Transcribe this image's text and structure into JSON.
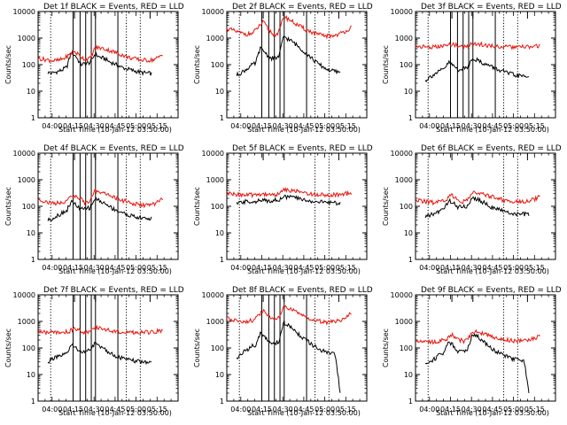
{
  "figure": {
    "background": "#ffffff",
    "colors": {
      "events": "#000000",
      "lld": "#e8140c",
      "axes": "#000000"
    }
  },
  "chart_data": [
    {
      "type": "line",
      "title": "Det 1f BLACK = Events, RED = LLD",
      "xlabel": "Start Time (10-Jan-12 03:50:00)",
      "ylabel": "Counts/sec",
      "yscale": "log",
      "ylim": [
        1,
        10000
      ],
      "x_ticks": [
        "04:00",
        "04:15",
        "04:30",
        "04:45",
        "05:00",
        "05:15"
      ],
      "y_ticks": [
        "1",
        "10",
        "100",
        "1000",
        "10000"
      ],
      "vlines_dotted": [
        "03:59",
        "04:53",
        "05:03"
      ],
      "vlines_solid": [
        "04:15",
        "04:20",
        "04:24",
        "04:28",
        "04:31",
        "04:47"
      ],
      "markers": [
        "04:16",
        "04:31",
        "05:10"
      ],
      "series": [
        {
          "name": "Events",
          "start": "03:57",
          "end": "05:11",
          "values": [
            50,
            48,
            55,
            62,
            80,
            300,
            200,
            100,
            110,
            120,
            250,
            190,
            170,
            130,
            110,
            90,
            75,
            68,
            60,
            55,
            50,
            48,
            46
          ]
        },
        {
          "name": "LLD",
          "start": "03:50",
          "end": "05:19",
          "values": [
            170,
            160,
            150,
            140,
            145,
            170,
            230,
            310,
            220,
            160,
            170,
            440,
            420,
            380,
            330,
            280,
            240,
            200,
            175,
            160,
            150,
            145,
            150,
            175,
            250
          ]
        }
      ]
    },
    {
      "type": "line",
      "title": "Det 2f BLACK = Events, RED = LLD",
      "xlabel": "Start Time (10-Jan-12 03:50:00)",
      "ylabel": "Counts/sec",
      "yscale": "log",
      "ylim": [
        1,
        10000
      ],
      "x_ticks": [
        "04:00",
        "04:15",
        "04:30",
        "04:45",
        "05:00",
        "05:15"
      ],
      "y_ticks": [
        "1",
        "10",
        "100",
        "1000",
        "10000"
      ],
      "vlines_dotted": [
        "03:59",
        "04:53",
        "05:03"
      ],
      "vlines_solid": [
        "04:15",
        "04:20",
        "04:24",
        "04:28",
        "04:31",
        "04:47"
      ],
      "markers": [
        "04:16",
        "04:31",
        "05:10"
      ],
      "series": [
        {
          "name": "Events",
          "start": "03:57",
          "end": "05:11",
          "values": [
            40,
            50,
            65,
            90,
            110,
            400,
            300,
            180,
            170,
            200,
            1200,
            900,
            700,
            500,
            350,
            250,
            170,
            120,
            90,
            70,
            60,
            55,
            50
          ]
        },
        {
          "name": "LLD",
          "start": "03:50",
          "end": "05:19",
          "values": [
            2200,
            2000,
            1700,
            1500,
            1400,
            1500,
            2500,
            4000,
            2200,
            1300,
            1600,
            6500,
            5000,
            3700,
            2800,
            2200,
            1800,
            1500,
            1300,
            1200,
            1200,
            1300,
            1500,
            1900,
            2500
          ]
        }
      ]
    },
    {
      "type": "line",
      "title": "Det 3f BLACK = Events, RED = LLD",
      "xlabel": "Start Time (10-Jan-12 03:50:00)",
      "ylabel": "Counts/sec",
      "yscale": "log",
      "ylim": [
        1,
        10000
      ],
      "x_ticks": [
        "04:00",
        "04:15",
        "04:30",
        "04:45",
        "05:00",
        "05:15"
      ],
      "y_ticks": [
        "1",
        "10",
        "100",
        "1000",
        "10000"
      ],
      "vlines_dotted": [
        "03:59",
        "04:53",
        "05:03"
      ],
      "vlines_solid": [
        "04:15",
        "04:20",
        "04:24",
        "04:28",
        "04:31",
        "04:47"
      ],
      "markers": [
        "04:16",
        "04:31",
        "05:10"
      ],
      "series": [
        {
          "name": "Events",
          "start": "03:57",
          "end": "05:11",
          "values": [
            25,
            35,
            45,
            55,
            70,
            120,
            90,
            65,
            70,
            80,
            180,
            150,
            120,
            100,
            85,
            70,
            60,
            52,
            45,
            40,
            38,
            36,
            35
          ]
        },
        {
          "name": "LLD",
          "start": "03:50",
          "end": "05:19",
          "values": [
            500,
            480,
            470,
            460,
            460,
            480,
            520,
            600,
            520,
            470,
            480,
            640,
            600,
            560,
            520,
            500,
            480,
            470,
            460,
            455,
            455,
            460,
            470,
            480,
            500
          ]
        }
      ]
    },
    {
      "type": "line",
      "title": "Det 4f BLACK = Events, RED = LLD",
      "xlabel": "Start Time (10-Jan-12 03:50:00)",
      "ylabel": "Counts/sec",
      "yscale": "log",
      "ylim": [
        1,
        10000
      ],
      "x_ticks": [
        "04:00",
        "04:15",
        "04:30",
        "04:45",
        "05:00",
        "05:15"
      ],
      "y_ticks": [
        "1",
        "10",
        "100",
        "1000",
        "10000"
      ],
      "vlines_dotted": [
        "03:59",
        "04:53",
        "05:03"
      ],
      "vlines_solid": [
        "04:15",
        "04:20",
        "04:24",
        "04:28",
        "04:31",
        "04:47"
      ],
      "markers": [
        "04:16",
        "04:31",
        "05:10"
      ],
      "series": [
        {
          "name": "Events",
          "start": "03:57",
          "end": "05:11",
          "values": [
            30,
            35,
            45,
            55,
            70,
            150,
            110,
            75,
            80,
            90,
            200,
            160,
            130,
            100,
            80,
            65,
            55,
            48,
            42,
            38,
            36,
            35,
            34
          ]
        },
        {
          "name": "LLD",
          "start": "03:50",
          "end": "05:19",
          "values": [
            180,
            160,
            140,
            130,
            130,
            150,
            190,
            260,
            200,
            140,
            150,
            380,
            350,
            300,
            250,
            200,
            170,
            150,
            130,
            120,
            110,
            110,
            115,
            140,
            200
          ]
        }
      ]
    },
    {
      "type": "line",
      "title": "Det 5f BLACK = Events, RED = LLD",
      "xlabel": "Start Time (10-Jan-12 03:50:00)",
      "ylabel": "Counts/sec",
      "yscale": "log",
      "ylim": [
        1,
        10000
      ],
      "x_ticks": [
        "04:00",
        "04:15",
        "04:30",
        "04:45",
        "05:00",
        "05:15"
      ],
      "y_ticks": [
        "1",
        "10",
        "100",
        "1000",
        "10000"
      ],
      "vlines_dotted": [
        "03:59",
        "04:53",
        "05:03"
      ],
      "vlines_solid": [],
      "markers": [
        "04:16",
        "04:31",
        "05:10"
      ],
      "series": [
        {
          "name": "Events",
          "start": "03:57",
          "end": "05:11",
          "values": [
            120,
            140,
            150,
            150,
            155,
            160,
            165,
            165,
            170,
            180,
            220,
            230,
            220,
            200,
            180,
            165,
            155,
            150,
            145,
            140,
            140,
            135,
            130
          ]
        },
        {
          "name": "LLD",
          "start": "03:50",
          "end": "05:19",
          "values": [
            300,
            290,
            280,
            270,
            265,
            270,
            280,
            290,
            280,
            275,
            280,
            420,
            410,
            380,
            350,
            320,
            300,
            285,
            275,
            270,
            270,
            275,
            285,
            300,
            320
          ]
        }
      ]
    },
    {
      "type": "line",
      "title": "Det 6f BLACK = Events, RED = LLD",
      "xlabel": "Start Time (10-Jan-12 03:50:00)",
      "ylabel": "Counts/sec",
      "yscale": "log",
      "ylim": [
        1,
        10000
      ],
      "x_ticks": [
        "04:00",
        "04:15",
        "04:30",
        "04:45",
        "05:00",
        "05:15"
      ],
      "y_ticks": [
        "1",
        "10",
        "100",
        "1000",
        "10000"
      ],
      "vlines_dotted": [
        "03:59",
        "04:53",
        "05:03"
      ],
      "vlines_solid": [],
      "markers": [
        "04:16",
        "04:31",
        "05:10"
      ],
      "series": [
        {
          "name": "Events",
          "start": "03:57",
          "end": "05:11",
          "values": [
            40,
            45,
            55,
            65,
            80,
            170,
            130,
            90,
            95,
            100,
            230,
            180,
            150,
            120,
            95,
            80,
            70,
            62,
            56,
            52,
            50,
            50,
            50
          ]
        },
        {
          "name": "LLD",
          "start": "03:50",
          "end": "05:19",
          "values": [
            170,
            160,
            150,
            140,
            140,
            155,
            190,
            260,
            200,
            150,
            160,
            330,
            310,
            280,
            250,
            220,
            190,
            170,
            155,
            150,
            150,
            155,
            165,
            190,
            250
          ]
        }
      ]
    },
    {
      "type": "line",
      "title": "Det 7f BLACK = Events, RED = LLD",
      "xlabel": "Start Time (10-Jan-12 03:50:00)",
      "ylabel": "Counts/sec",
      "yscale": "log",
      "ylim": [
        1,
        10000
      ],
      "x_ticks": [
        "04:00",
        "04:15",
        "04:30",
        "04:45",
        "05:00",
        "05:15"
      ],
      "y_ticks": [
        "1",
        "10",
        "100",
        "1000",
        "10000"
      ],
      "vlines_dotted": [
        "03:59",
        "04:53",
        "05:03"
      ],
      "vlines_solid": [
        "04:15",
        "04:20",
        "04:24",
        "04:28",
        "04:31",
        "04:47"
      ],
      "markers": [
        "04:16",
        "04:31",
        "05:10"
      ],
      "series": [
        {
          "name": "Events",
          "start": "03:57",
          "end": "05:11",
          "values": [
            30,
            40,
            45,
            50,
            60,
            130,
            100,
            70,
            75,
            80,
            150,
            120,
            90,
            70,
            55,
            45,
            40,
            36,
            33,
            31,
            30,
            30,
            30
          ]
        },
        {
          "name": "LLD",
          "start": "03:50",
          "end": "05:19",
          "values": [
            420,
            400,
            380,
            370,
            370,
            390,
            430,
            550,
            450,
            380,
            390,
            600,
            560,
            500,
            460,
            430,
            410,
            400,
            390,
            385,
            385,
            390,
            400,
            420,
            450
          ]
        }
      ]
    },
    {
      "type": "line",
      "title": "Det 8f BLACK = Events, RED = LLD",
      "xlabel": "Start Time (10-Jan-12 03:50:00)",
      "ylabel": "Counts/sec",
      "yscale": "log",
      "ylim": [
        1,
        10000
      ],
      "x_ticks": [
        "04:00",
        "04:15",
        "04:30",
        "04:45",
        "05:00",
        "05:15"
      ],
      "y_ticks": [
        "1",
        "10",
        "100",
        "1000",
        "10000"
      ],
      "vlines_dotted": [
        "03:59",
        "04:53",
        "05:03"
      ],
      "vlines_solid": [
        "04:15",
        "04:20",
        "04:24",
        "04:28",
        "04:31",
        "04:47"
      ],
      "markers": [
        "04:16",
        "04:31",
        "05:10"
      ],
      "series": [
        {
          "name": "Events",
          "start": "03:57",
          "end": "05:11",
          "values": [
            40,
            60,
            80,
            110,
            130,
            350,
            250,
            160,
            150,
            170,
            900,
            700,
            500,
            350,
            250,
            180,
            130,
            100,
            80,
            70,
            60,
            55,
            2
          ]
        },
        {
          "name": "LLD",
          "start": "03:50",
          "end": "05:19",
          "values": [
            1300,
            1200,
            1100,
            1000,
            1000,
            1100,
            1600,
            2500,
            1700,
            1100,
            1300,
            3500,
            3000,
            2400,
            1900,
            1500,
            1300,
            1100,
            1000,
            950,
            950,
            1000,
            1100,
            1400,
            2000
          ]
        }
      ]
    },
    {
      "type": "line",
      "title": "Det 9f BLACK = Events, RED = LLD",
      "xlabel": "Start Time (10-Jan-12 03:50:00)",
      "ylabel": "Counts/sec",
      "yscale": "log",
      "ylim": [
        1,
        10000
      ],
      "x_ticks": [
        "04:00",
        "04:15",
        "04:30",
        "04:45",
        "05:00",
        "05:15"
      ],
      "y_ticks": [
        "1",
        "10",
        "100",
        "1000",
        "10000"
      ],
      "vlines_dotted": [
        "03:59",
        "04:53",
        "05:03"
      ],
      "vlines_solid": [],
      "markers": [
        "04:16",
        "04:31",
        "05:10"
      ],
      "series": [
        {
          "name": "Events",
          "start": "03:57",
          "end": "05:11",
          "values": [
            25,
            30,
            40,
            55,
            70,
            180,
            120,
            75,
            80,
            90,
            350,
            280,
            200,
            140,
            100,
            75,
            60,
            50,
            42,
            38,
            35,
            32,
            2
          ]
        },
        {
          "name": "LLD",
          "start": "03:50",
          "end": "05:19",
          "values": [
            200,
            190,
            180,
            170,
            170,
            185,
            220,
            310,
            240,
            180,
            190,
            430,
            400,
            350,
            300,
            260,
            230,
            210,
            195,
            185,
            185,
            190,
            200,
            230,
            300
          ]
        }
      ]
    }
  ]
}
